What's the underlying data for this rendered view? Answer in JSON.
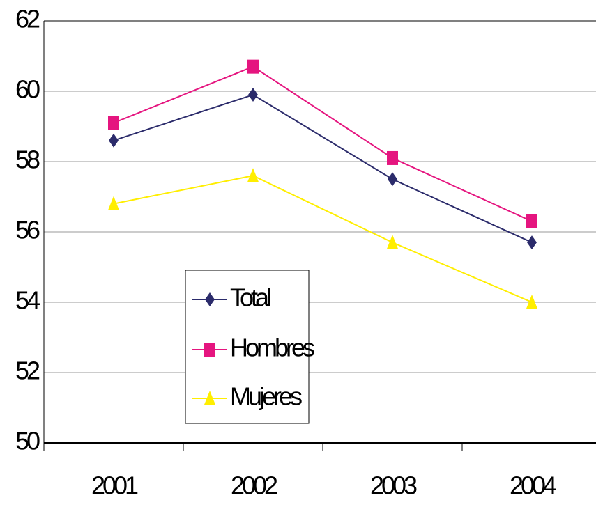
{
  "chart_data": {
    "type": "line",
    "categories": [
      "2001",
      "2002",
      "2003",
      "2004"
    ],
    "series": [
      {
        "name": "Total",
        "color": "#2b2b6b",
        "marker": "diamond",
        "values": [
          58.6,
          59.9,
          57.5,
          55.7
        ]
      },
      {
        "name": "Hombres",
        "color": "#e5157f",
        "marker": "square",
        "values": [
          59.1,
          60.7,
          58.1,
          56.3
        ]
      },
      {
        "name": "Mujeres",
        "color": "#ffee00",
        "marker": "triangle",
        "values": [
          56.8,
          57.6,
          55.7,
          54.0
        ]
      }
    ],
    "ylim": [
      50,
      62
    ],
    "yticks": [
      50,
      52,
      54,
      56,
      58,
      60,
      62
    ],
    "grid": true
  }
}
